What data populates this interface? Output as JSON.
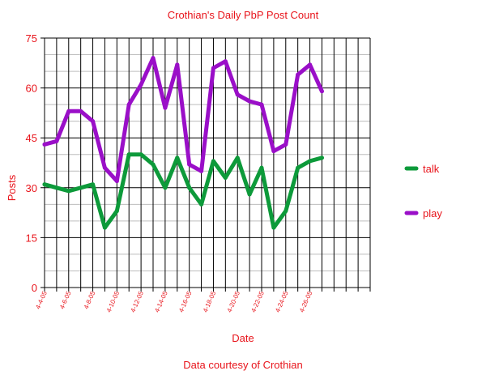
{
  "chart_data": {
    "type": "line",
    "title": "Crothian's Daily PbP Post Count",
    "xlabel": "Date",
    "ylabel": "Posts",
    "footer": "Data courtesy of Crothian",
    "ylim": [
      0,
      75
    ],
    "y_ticks": [
      "0",
      "15",
      "30",
      "45",
      "60",
      "75"
    ],
    "x_tick_labels": [
      "4-4-05",
      "4-6-05",
      "4-8-05",
      "4-10-05",
      "4-12-05",
      "4-14-05",
      "4-16-05",
      "4-18-05",
      "4-20-05",
      "4-22-05",
      "4-24-05",
      "4-26-05"
    ],
    "x": [
      "4-4-05",
      "4-5-05",
      "4-6-05",
      "4-7-05",
      "4-8-05",
      "4-9-05",
      "4-10-05",
      "4-11-05",
      "4-12-05",
      "4-13-05",
      "4-14-05",
      "4-15-05",
      "4-16-05",
      "4-17-05",
      "4-18-05",
      "4-19-05",
      "4-20-05",
      "4-21-05",
      "4-22-05",
      "4-23-05",
      "4-24-05",
      "4-25-05",
      "4-26-05",
      "4-27-05"
    ],
    "grid": true,
    "legend_position": "right",
    "series": [
      {
        "name": "talk",
        "color": "#0d9a3a",
        "values": [
          31,
          30,
          29,
          30,
          31,
          18,
          23,
          40,
          40,
          37,
          30,
          39,
          30,
          25,
          38,
          33,
          39,
          28,
          36,
          18,
          23,
          36,
          38,
          39
        ]
      },
      {
        "name": "play",
        "color": "#9a0fc8",
        "values": [
          43,
          44,
          53,
          53,
          50,
          36,
          32,
          55,
          61,
          69,
          54,
          67,
          37,
          35,
          66,
          68,
          58,
          56,
          55,
          41,
          43,
          64,
          67,
          59
        ]
      }
    ]
  }
}
